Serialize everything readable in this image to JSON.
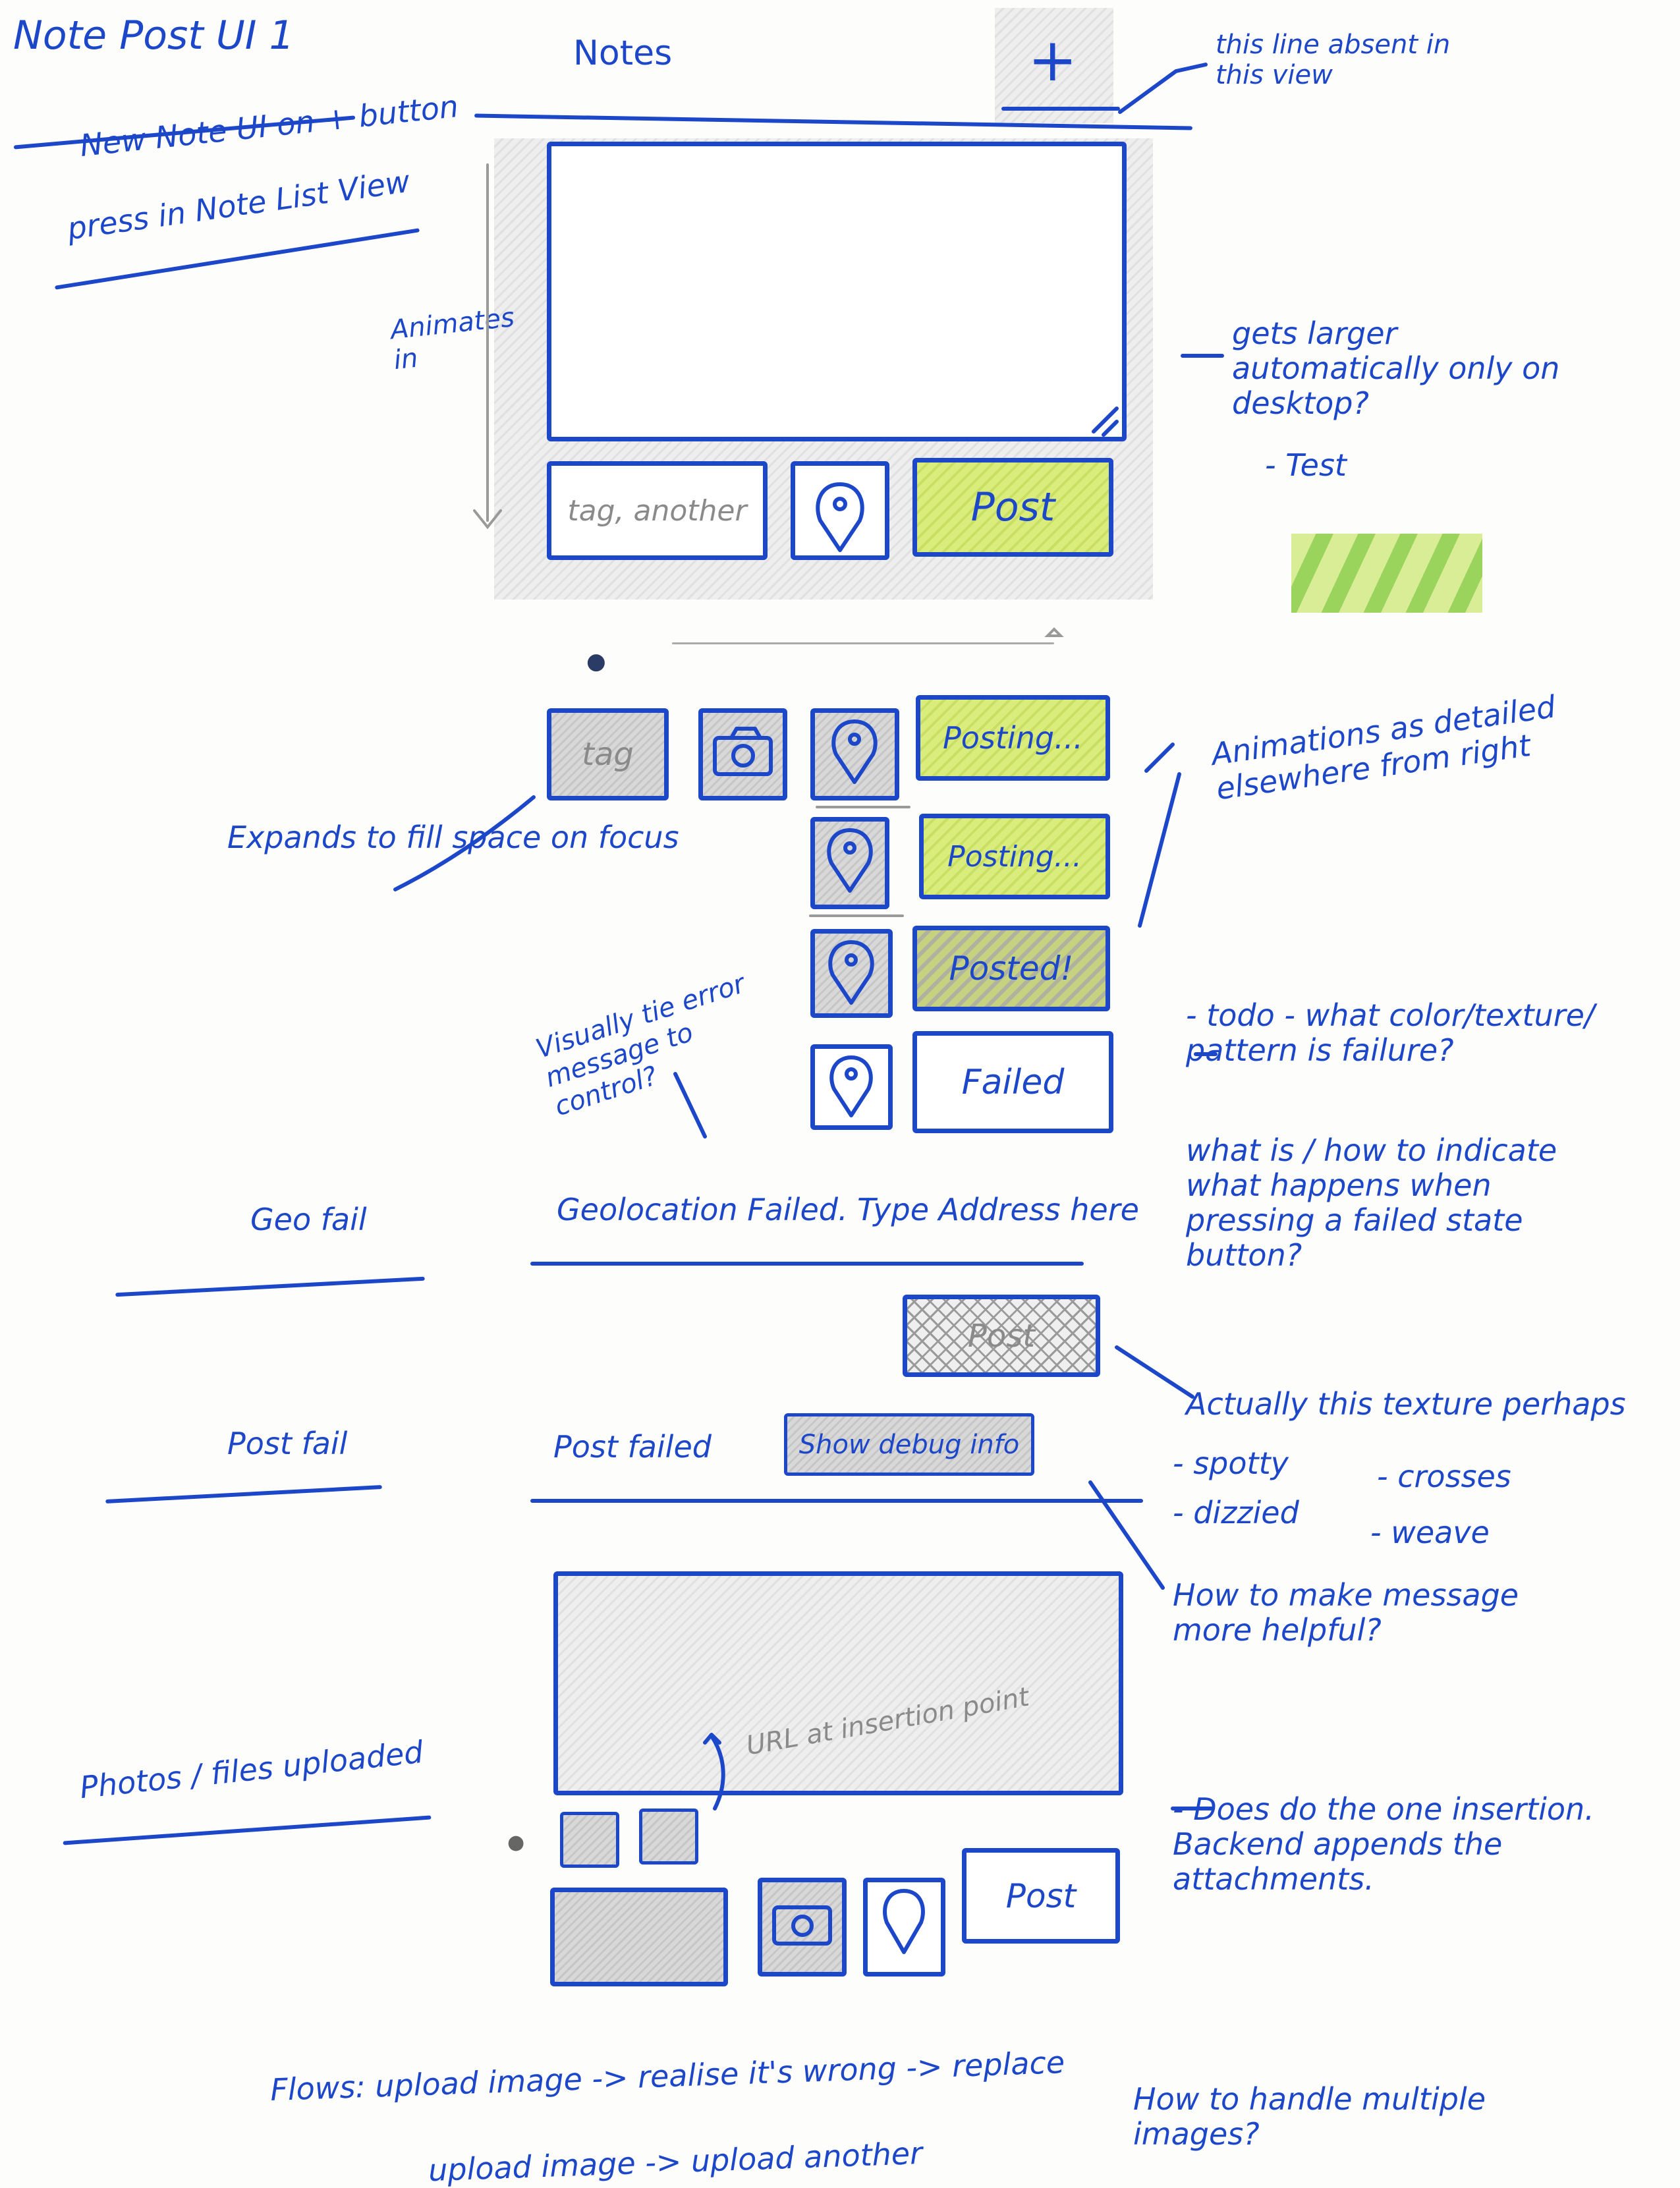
{
  "header": {
    "title_line1": "Note Post UI 1",
    "title_line2": "New Note UI on + button",
    "title_line3": "press in Note List View",
    "app_title": "Notes",
    "plus_label": "+"
  },
  "annotations": {
    "line_absent": "this line absent in this view",
    "animates_in": "Animates in",
    "grows": "gets larger automatically only on desktop?",
    "test": "- Test",
    "animations": "Animations as detailed elsewhere from right",
    "expands": "Expands to fill space on focus",
    "visually_tie": "Visually tie error message to control?",
    "todo": "- todo - what color/texture/ pattern is failure?",
    "what_is": "what is / how to indicate what happens when pressing a failed state button?",
    "actually": "Actually this texture perhaps",
    "spotty": "- spotty",
    "crosses": "- crosses",
    "dizzied": "- dizzied",
    "weave": "- weave",
    "how_helpful": "How to make message more helpful?",
    "does_one": "- Does do the one insertion. Backend appends the attachments.",
    "how_multiple": "How to handle multiple images?"
  },
  "sections": {
    "geo_fail": "Geo fail",
    "post_fail": "Post fail",
    "photos": "Photos / files uploaded"
  },
  "composer": {
    "tag_placeholder": "tag, another",
    "post": "Post",
    "tag": "tag",
    "posting": "Posting...",
    "posted": "Posted!",
    "failed": "Failed"
  },
  "geo": {
    "message": "Geolocation Failed. Type Address here",
    "post": "Post"
  },
  "postfail": {
    "message": "Post failed",
    "debug": "Show debug info"
  },
  "upload": {
    "url_note": "URL at insertion point",
    "post": "Post"
  },
  "flows": {
    "line1": "Flows: upload image -> realise it's wrong -> replace",
    "line2": "upload image -> upload another"
  }
}
